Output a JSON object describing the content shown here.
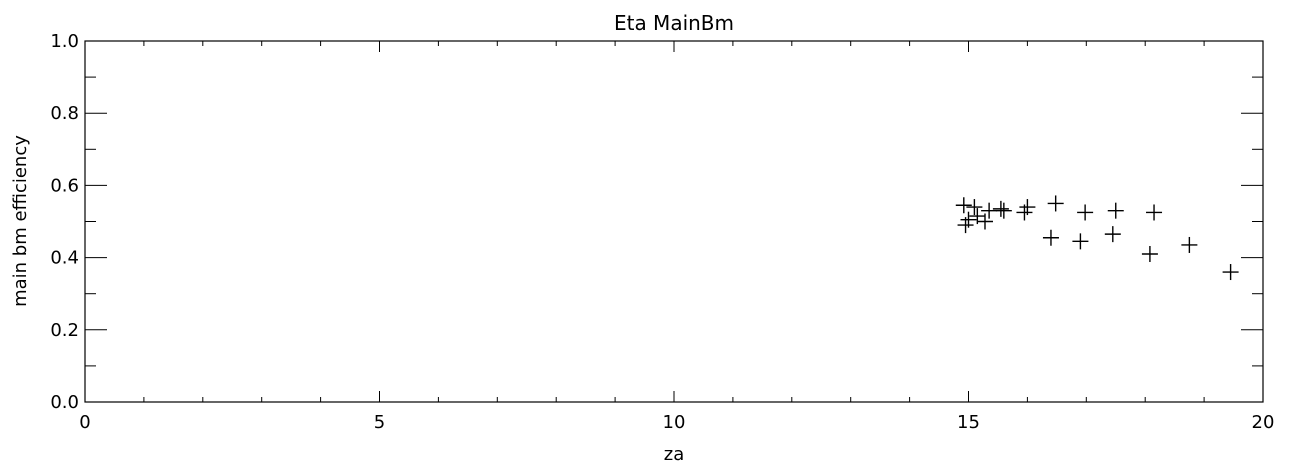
{
  "chart_data": {
    "type": "scatter",
    "title": "Eta MainBm",
    "xlabel": "za",
    "ylabel": "main bm efficiency",
    "xlim": [
      0,
      20
    ],
    "ylim": [
      0,
      1
    ],
    "grid": false,
    "marker": "plus",
    "x_ticks": [
      0,
      5,
      10,
      15,
      20
    ],
    "x_tick_labels": [
      "0",
      "5",
      "10",
      "15",
      "20"
    ],
    "y_ticks": [
      0.0,
      0.2,
      0.4,
      0.6,
      0.8,
      1.0
    ],
    "y_tick_labels": [
      "0.0",
      "0.2",
      "0.4",
      "0.6",
      "0.8",
      "1.0"
    ],
    "points": [
      {
        "x": 14.92,
        "y": 0.545
      },
      {
        "x": 14.95,
        "y": 0.49
      },
      {
        "x": 15.0,
        "y": 0.505
      },
      {
        "x": 15.1,
        "y": 0.54
      },
      {
        "x": 15.15,
        "y": 0.515
      },
      {
        "x": 15.28,
        "y": 0.5
      },
      {
        "x": 15.35,
        "y": 0.53
      },
      {
        "x": 15.55,
        "y": 0.535
      },
      {
        "x": 15.6,
        "y": 0.53
      },
      {
        "x": 15.95,
        "y": 0.525
      },
      {
        "x": 16.0,
        "y": 0.54
      },
      {
        "x": 16.4,
        "y": 0.455
      },
      {
        "x": 16.48,
        "y": 0.55
      },
      {
        "x": 16.9,
        "y": 0.445
      },
      {
        "x": 16.98,
        "y": 0.525
      },
      {
        "x": 17.45,
        "y": 0.465
      },
      {
        "x": 17.5,
        "y": 0.53
      },
      {
        "x": 18.08,
        "y": 0.41
      },
      {
        "x": 18.15,
        "y": 0.525
      },
      {
        "x": 18.75,
        "y": 0.435
      },
      {
        "x": 19.45,
        "y": 0.36
      }
    ],
    "colors": {
      "marker": "#000000",
      "axes": "#000000",
      "background": "#ffffff"
    }
  }
}
